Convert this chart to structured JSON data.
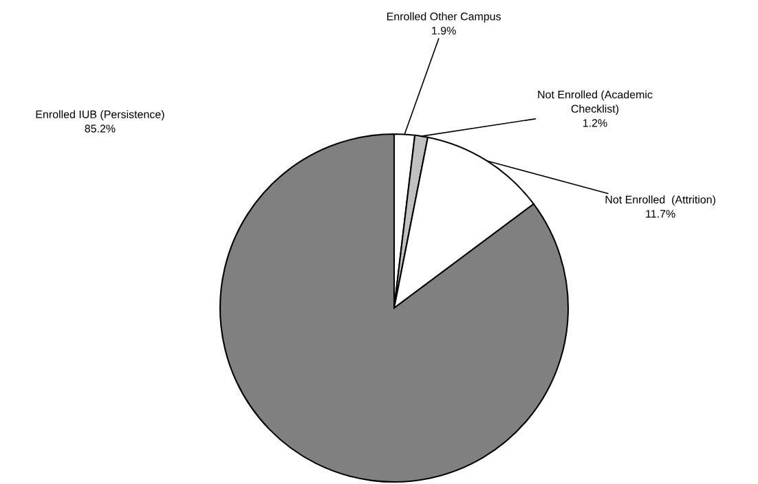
{
  "chart_data": {
    "type": "pie",
    "categories": [
      "Enrolled Other Campus",
      "Not Enrolled (Academic Checklist)",
      "Not Enrolled  (Attrition)",
      "Enrolled IUB (Persistence)"
    ],
    "values": [
      1.9,
      1.2,
      11.7,
      85.2
    ],
    "value_labels": [
      "1.9%",
      "1.2%",
      "11.7%",
      "85.2%"
    ],
    "colors": [
      "#ffffff",
      "#c0c0c0",
      "#ffffff",
      "#808080"
    ],
    "legend": false
  }
}
